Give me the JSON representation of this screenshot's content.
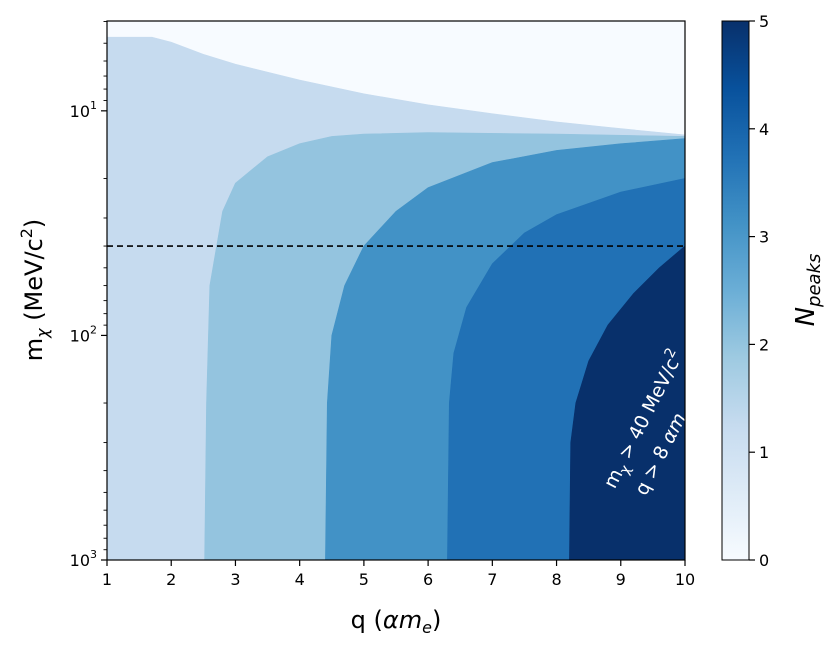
{
  "chart_data": {
    "type": "heatmap",
    "xlabel_main": "q (",
    "xlabel_alpha": "α",
    "xlabel_m": "m",
    "xlabel_sub": "e",
    "xlabel_close": ")",
    "ylabel_main": "m",
    "ylabel_sub": "χ",
    "ylabel_units": " (MeV/c",
    "ylabel_sup": "2",
    "ylabel_close": ")",
    "xlim": [
      1,
      10
    ],
    "ylim_log10": [
      0.6,
      3.0
    ],
    "y_inverted": true,
    "x_ticks": [
      1,
      2,
      3,
      4,
      5,
      6,
      7,
      8,
      9,
      10
    ],
    "y_ticks": [
      {
        "value": 10,
        "base": "10",
        "exp": "1"
      },
      {
        "value": 100,
        "base": "10",
        "exp": "2"
      },
      {
        "value": 1000,
        "base": "10",
        "exp": "3"
      }
    ],
    "regions": [
      {
        "n_peaks": 1,
        "q_min": 1.0,
        "color": "#c6dbef",
        "boundary": [
          [
            1.0,
            4.7
          ],
          [
            1.7,
            4.7
          ],
          [
            2.0,
            4.95
          ],
          [
            2.5,
            5.6
          ],
          [
            3.0,
            6.2
          ],
          [
            4.0,
            7.3
          ],
          [
            5.0,
            8.4
          ],
          [
            6.0,
            9.4
          ],
          [
            7.0,
            10.3
          ],
          [
            8.0,
            11.2
          ],
          [
            9.0,
            12.0
          ],
          [
            10.0,
            12.8
          ]
        ]
      },
      {
        "n_peaks": 2,
        "q_min": 2.52,
        "color": "#94c4df",
        "boundary": [
          [
            2.52,
            1000
          ],
          [
            2.55,
            200
          ],
          [
            2.6,
            60
          ],
          [
            2.8,
            28
          ],
          [
            3.0,
            21
          ],
          [
            3.5,
            16
          ],
          [
            4.0,
            14
          ],
          [
            4.5,
            13
          ],
          [
            5.0,
            12.7
          ],
          [
            6.0,
            12.5
          ],
          [
            8.0,
            12.7
          ],
          [
            10.0,
            13
          ]
        ]
      },
      {
        "n_peaks": 3,
        "q_min": 4.4,
        "color": "#4292c6",
        "boundary": [
          [
            4.4,
            1000
          ],
          [
            4.43,
            200
          ],
          [
            4.5,
            100
          ],
          [
            4.7,
            60
          ],
          [
            5.0,
            40
          ],
          [
            5.5,
            28
          ],
          [
            6.0,
            22
          ],
          [
            7.0,
            17
          ],
          [
            8.0,
            15
          ],
          [
            9.0,
            14
          ],
          [
            10.0,
            13.3
          ]
        ]
      },
      {
        "n_peaks": 4,
        "q_min": 6.3,
        "color": "#2171b5",
        "boundary": [
          [
            6.3,
            1000
          ],
          [
            6.33,
            200
          ],
          [
            6.4,
            120
          ],
          [
            6.6,
            75
          ],
          [
            7.0,
            48
          ],
          [
            7.5,
            35
          ],
          [
            8.0,
            29
          ],
          [
            9.0,
            23
          ],
          [
            10.0,
            20
          ]
        ]
      },
      {
        "n_peaks": 5,
        "q_min": 8.2,
        "color": "#08306b",
        "boundary": [
          [
            8.2,
            1000
          ],
          [
            8.22,
            300
          ],
          [
            8.3,
            200
          ],
          [
            8.5,
            130
          ],
          [
            8.8,
            90
          ],
          [
            9.2,
            65
          ],
          [
            9.6,
            50
          ],
          [
            10.0,
            40
          ]
        ]
      }
    ],
    "background_color": "#f7fbff",
    "dashed_line": {
      "y": 40,
      "style": "dashed",
      "color": "#000000"
    },
    "annotation_lines": [
      {
        "parts": [
          {
            "text": "m",
            "style": "normal"
          },
          {
            "text": "χ",
            "style": "sub"
          },
          {
            "text": " > 40 MeV/c",
            "style": "normal"
          },
          {
            "text": "2",
            "style": "sup"
          }
        ]
      },
      {
        "parts": [
          {
            "text": "q > 8 ",
            "style": "normal"
          },
          {
            "text": "α",
            "style": "italic"
          },
          {
            "text": "m",
            "style": "italic"
          },
          {
            "text": "e",
            "style": "sub-italic"
          }
        ]
      }
    ],
    "colorbar": {
      "min": 0,
      "max": 5,
      "ticks": [
        0,
        1,
        2,
        3,
        4,
        5
      ],
      "label_main": "N",
      "label_sub": "peaks",
      "stops": [
        "#f7fbff",
        "#deebf7",
        "#c6dbef",
        "#9ecae1",
        "#6baed6",
        "#4292c6",
        "#2171b5",
        "#08519c",
        "#08306b"
      ]
    }
  }
}
